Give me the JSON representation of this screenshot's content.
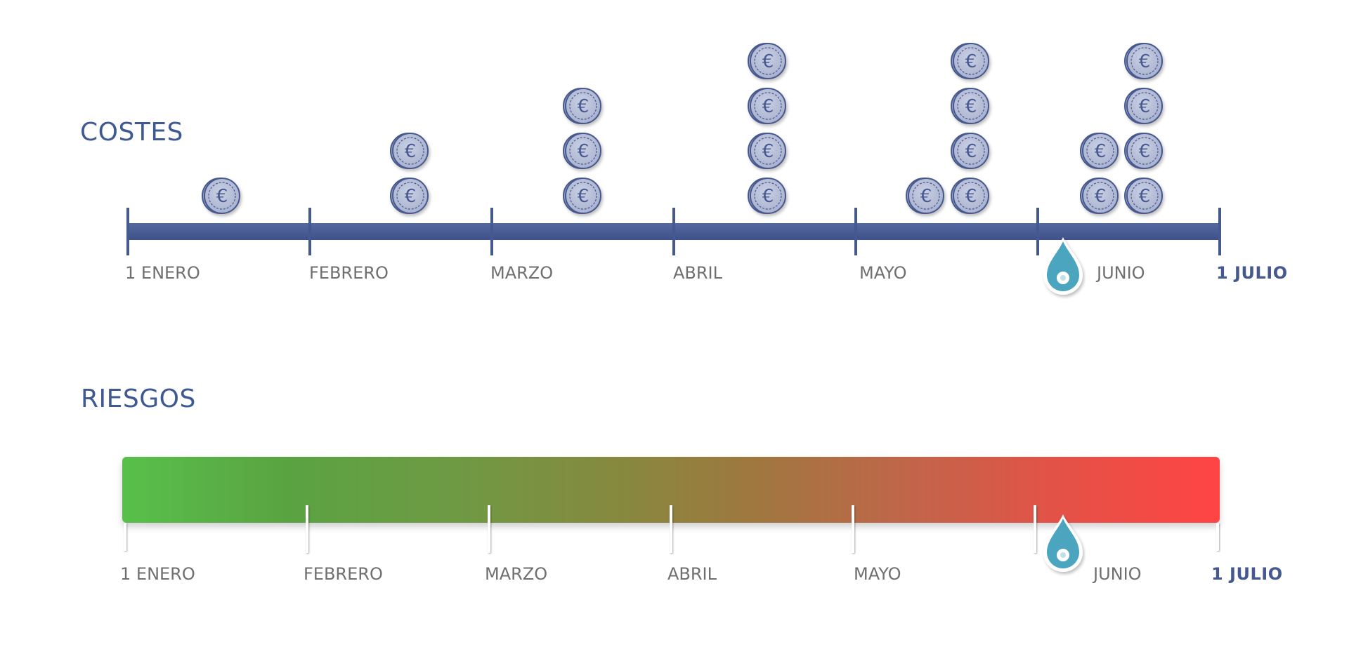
{
  "costs": {
    "title": "COSTES",
    "months": [
      "1 ENERO",
      "FEBRERO",
      "MARZO",
      "ABRIL",
      "MAYO",
      "JUNIO"
    ],
    "end_label": "1 JULIO",
    "coin_stacks": [
      {
        "month": "ENERO",
        "coins": 1
      },
      {
        "month": "FEBRERO",
        "coins": 2
      },
      {
        "month": "MARZO",
        "coins": 3
      },
      {
        "month": "ABRIL",
        "coins": 4
      },
      {
        "month": "MAYO",
        "coins": 1
      },
      {
        "month": "MAYO",
        "coins": 4
      },
      {
        "month": "JUNIO",
        "coins": 2
      },
      {
        "month": "JUNIO",
        "coins": 4
      }
    ],
    "coin_symbol": "€",
    "bar_color": "#46598f",
    "coin_color": "#b7bfd8",
    "coin_stroke": "#46598f"
  },
  "risks": {
    "title": "RIESGOS",
    "months": [
      "1 ENERO",
      "FEBRERO",
      "MARZO",
      "ABRIL",
      "MAYO",
      "JUNIO"
    ],
    "end_label": "1 JULIO",
    "gradient_start": "#58c04a",
    "gradient_end": "#ff4444"
  },
  "marker": {
    "icon": "location-pin-icon",
    "color": "#4ba5bf",
    "month": "JUNIO"
  }
}
